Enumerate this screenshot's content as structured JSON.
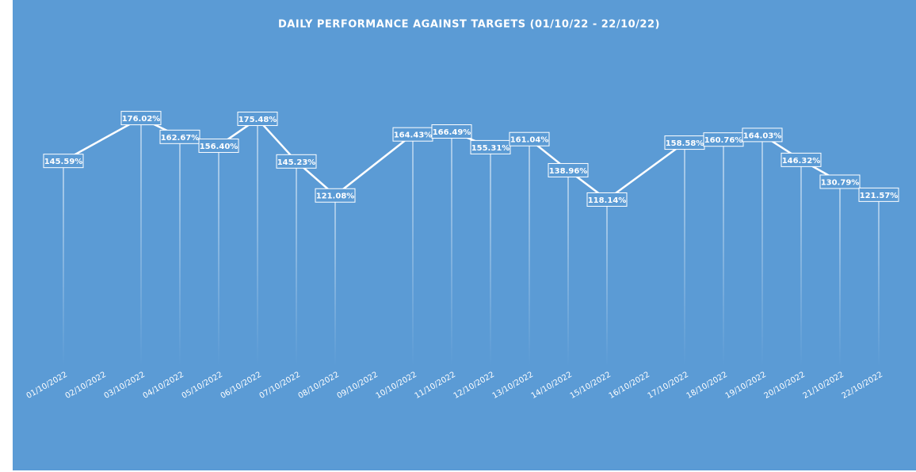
{
  "chart_data": {
    "type": "line",
    "title": "DAILY PERFORMANCE AGAINST TARGETS (01/10/22 - 22/10/22)",
    "categories": [
      "01/10/2022",
      "02/10/2022",
      "03/10/2022",
      "04/10/2022",
      "05/10/2022",
      "06/10/2022",
      "07/10/2022",
      "08/10/2022",
      "09/10/2022",
      "10/10/2022",
      "11/10/2022",
      "12/10/2022",
      "13/10/2022",
      "14/10/2022",
      "15/10/2022",
      "16/10/2022",
      "17/10/2022",
      "18/10/2022",
      "19/10/2022",
      "20/10/2022",
      "21/10/2022",
      "22/10/2022"
    ],
    "values": [
      145.59,
      null,
      176.02,
      162.67,
      156.4,
      175.48,
      145.23,
      121.08,
      null,
      164.43,
      166.49,
      155.31,
      161.04,
      138.96,
      118.14,
      null,
      158.58,
      160.76,
      164.03,
      146.32,
      130.79,
      121.57
    ],
    "value_labels": [
      "145.59%",
      null,
      "176.02%",
      "162.67%",
      "156.40%",
      "175.48%",
      "145.23%",
      "121.08%",
      null,
      "164.43%",
      "166.49%",
      "155.31%",
      "161.04%",
      "138.96%",
      "118.14%",
      null,
      "158.58%",
      "160.76%",
      "164.03%",
      "146.32%",
      "130.79%",
      "121.57%"
    ],
    "color": "#ffffff",
    "background": "#5b9bd5",
    "drop_lines": true,
    "span_gaps": true,
    "ylim": [
      0,
      225
    ]
  }
}
